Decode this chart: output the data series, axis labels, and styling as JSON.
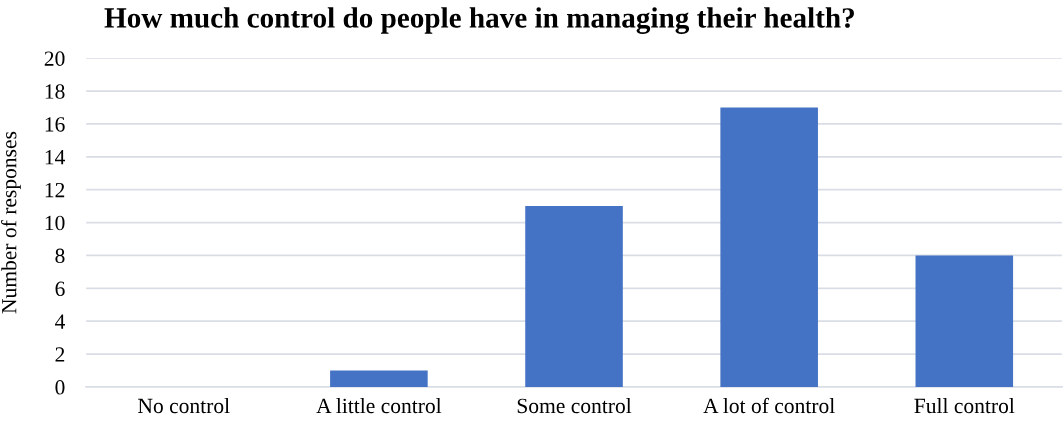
{
  "chart_data": {
    "type": "bar",
    "title": "How much control do people have in managing their health?",
    "ylabel": "Number of responses",
    "categories": [
      "No control",
      "A little control",
      "Some control",
      "A lot of control",
      "Full control"
    ],
    "values": [
      0,
      1,
      11,
      17,
      8
    ],
    "color": "#4472c4",
    "ylim": [
      0,
      20
    ],
    "yticks": [
      0,
      2,
      4,
      6,
      8,
      10,
      12,
      14,
      16,
      18,
      20
    ],
    "grid": "y",
    "legend": false
  }
}
